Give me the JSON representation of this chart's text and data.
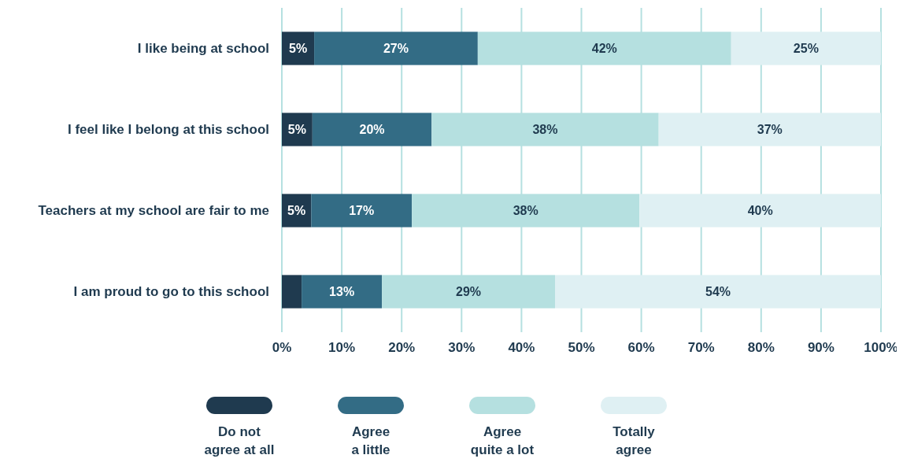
{
  "chart_data": {
    "type": "bar",
    "orientation": "horizontal",
    "stacked": true,
    "categories": [
      "I like being at school",
      "I feel like I belong at this school",
      "Teachers at my school are fair to me",
      "I am proud to go to this school"
    ],
    "series": [
      {
        "name": "Do not\nagree at all",
        "color": "#1f3a4f",
        "values": [
          5.4,
          5.1,
          4.9,
          3.3
        ],
        "value_labels": [
          "5%",
          "5%",
          "5%",
          null
        ]
      },
      {
        "name": "Agree\na little",
        "color": "#336c85",
        "values": [
          27.3,
          19.9,
          16.8,
          13.4
        ],
        "value_labels": [
          "27%",
          "20%",
          "17%",
          "13%"
        ]
      },
      {
        "name": "Agree\nquite a lot",
        "color": "#b5e0e0",
        "values": [
          42.3,
          37.9,
          38.0,
          28.9
        ],
        "value_labels": [
          "42%",
          "38%",
          "38%",
          "29%"
        ]
      },
      {
        "name": "Totally\nagree",
        "color": "#dff0f3",
        "values": [
          25.0,
          37.1,
          40.3,
          54.4
        ],
        "value_labels": [
          "25%",
          "37%",
          "40%",
          "54%"
        ]
      }
    ],
    "xlim": [
      0,
      100
    ],
    "xticks": [
      {
        "value": 0,
        "label": "0%"
      },
      {
        "value": 10,
        "label": "10%"
      },
      {
        "value": 20,
        "label": "20%"
      },
      {
        "value": 30,
        "label": "30%"
      },
      {
        "value": 40,
        "label": "40%"
      },
      {
        "value": 50,
        "label": "50%"
      },
      {
        "value": 60,
        "label": "60%"
      },
      {
        "value": 70,
        "label": "70%"
      },
      {
        "value": 80,
        "label": "80%"
      },
      {
        "value": 90,
        "label": "90%"
      },
      {
        "value": 100,
        "label": "100%"
      }
    ],
    "grid": "x",
    "legend": "bottom"
  }
}
